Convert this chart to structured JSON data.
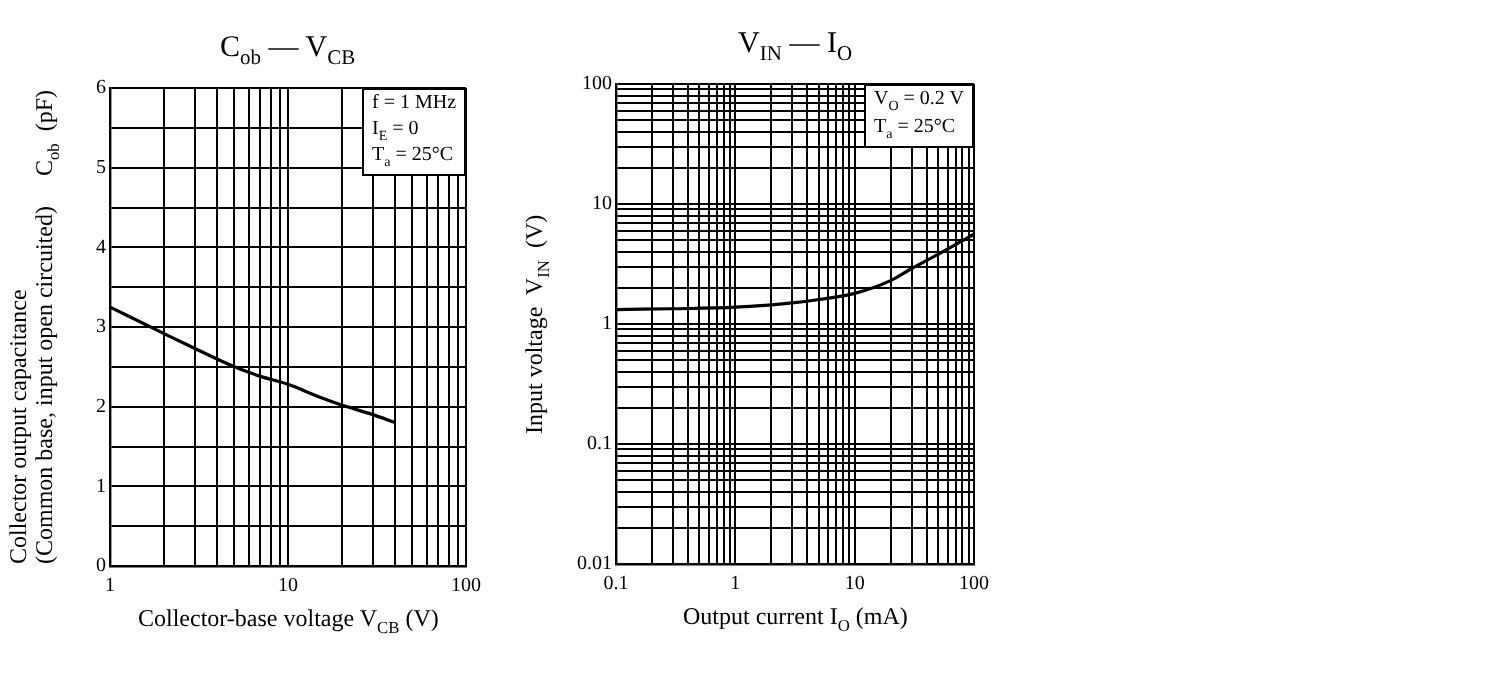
{
  "chart_data": [
    {
      "type": "line",
      "title": "C$_{ob}$ — V$_{CB}$",
      "xlabel": "Collector-base voltage  V$_{CB}$  (V)",
      "ylabel": "Collector output capacitance\n(Common base, input open circuited)     C$_{ob}$  (pF)",
      "annotations": [
        "f = 1 MHz",
        "I$_{E}$ = 0",
        "T$_{a}$ = 25°C"
      ],
      "log": "x",
      "grid": true,
      "legend": false,
      "marker": "none",
      "line_style": "solid",
      "xlim": [
        1,
        100
      ],
      "ylim": [
        0,
        6
      ],
      "xticks": [
        1,
        {
          "value": 2,
          "label": null
        },
        {
          "value": 3,
          "label": null
        },
        {
          "value": 4,
          "label": null
        },
        {
          "value": 5,
          "label": null
        },
        {
          "value": 6,
          "label": null
        },
        {
          "value": 7,
          "label": null
        },
        {
          "value": 8,
          "label": null
        },
        {
          "value": 9,
          "label": null
        },
        10,
        {
          "value": 20,
          "label": null
        },
        {
          "value": 30,
          "label": null
        },
        {
          "value": 40,
          "label": null
        },
        {
          "value": 50,
          "label": null
        },
        {
          "value": 60,
          "label": null
        },
        {
          "value": 70,
          "label": null
        },
        {
          "value": 80,
          "label": null
        },
        {
          "value": 90,
          "label": null
        },
        100
      ],
      "yticks": [
        0,
        {
          "value": 0.5,
          "label": null
        },
        1,
        {
          "value": 1.5,
          "label": null
        },
        2,
        {
          "value": 2.5,
          "label": null
        },
        3,
        {
          "value": 3.5,
          "label": null
        },
        4,
        {
          "value": 4.5,
          "label": null
        },
        5,
        {
          "value": 5.5,
          "label": null
        },
        6
      ],
      "series": [
        {
          "color": "#000000",
          "x": [
            1,
            2,
            3,
            5,
            7,
            10,
            15,
            20,
            30,
            40
          ],
          "values": [
            3.25,
            2.92,
            2.73,
            2.5,
            2.38,
            2.28,
            2.12,
            2.02,
            1.9,
            1.8
          ]
        }
      ]
    },
    {
      "type": "line",
      "title": "V$_{IN}$ — I$_{O}$",
      "xlabel": "Output current  I$_{O}$  (mA)",
      "ylabel": "Input voltage  V$_{IN}$  (V)",
      "annotations": [
        "V$_{O}$ = 0.2 V",
        "T$_{a}$ = 25°C"
      ],
      "log": "xy",
      "grid": true,
      "legend": false,
      "marker": "none",
      "line_style": "solid",
      "xlim": [
        0.1,
        100
      ],
      "ylim": [
        0.01,
        100
      ],
      "xticks": [
        0.1,
        {
          "value": 0.2,
          "label": null
        },
        {
          "value": 0.3,
          "label": null
        },
        {
          "value": 0.4,
          "label": null
        },
        {
          "value": 0.5,
          "label": null
        },
        {
          "value": 0.6,
          "label": null
        },
        {
          "value": 0.7,
          "label": null
        },
        {
          "value": 0.8,
          "label": null
        },
        {
          "value": 0.9,
          "label": null
        },
        1,
        {
          "value": 2,
          "label": null
        },
        {
          "value": 3,
          "label": null
        },
        {
          "value": 4,
          "label": null
        },
        {
          "value": 5,
          "label": null
        },
        {
          "value": 6,
          "label": null
        },
        {
          "value": 7,
          "label": null
        },
        {
          "value": 8,
          "label": null
        },
        {
          "value": 9,
          "label": null
        },
        10,
        {
          "value": 20,
          "label": null
        },
        {
          "value": 30,
          "label": null
        },
        {
          "value": 40,
          "label": null
        },
        {
          "value": 50,
          "label": null
        },
        {
          "value": 60,
          "label": null
        },
        {
          "value": 70,
          "label": null
        },
        {
          "value": 80,
          "label": null
        },
        {
          "value": 90,
          "label": null
        },
        100
      ],
      "yticks": [
        0.01,
        {
          "value": 0.02,
          "label": null
        },
        {
          "value": 0.03,
          "label": null
        },
        {
          "value": 0.04,
          "label": null
        },
        {
          "value": 0.05,
          "label": null
        },
        {
          "value": 0.06,
          "label": null
        },
        {
          "value": 0.07,
          "label": null
        },
        {
          "value": 0.08,
          "label": null
        },
        {
          "value": 0.09,
          "label": null
        },
        0.1,
        {
          "value": 0.2,
          "label": null
        },
        {
          "value": 0.3,
          "label": null
        },
        {
          "value": 0.4,
          "label": null
        },
        {
          "value": 0.5,
          "label": null
        },
        {
          "value": 0.6,
          "label": null
        },
        {
          "value": 0.7,
          "label": null
        },
        {
          "value": 0.8,
          "label": null
        },
        {
          "value": 0.9,
          "label": null
        },
        1,
        {
          "value": 2,
          "label": null
        },
        {
          "value": 3,
          "label": null
        },
        {
          "value": 4,
          "label": null
        },
        {
          "value": 5,
          "label": null
        },
        {
          "value": 6,
          "label": null
        },
        {
          "value": 7,
          "label": null
        },
        {
          "value": 8,
          "label": null
        },
        {
          "value": 9,
          "label": null
        },
        10,
        {
          "value": 20,
          "label": null
        },
        {
          "value": 30,
          "label": null
        },
        {
          "value": 40,
          "label": null
        },
        {
          "value": 50,
          "label": null
        },
        {
          "value": 60,
          "label": null
        },
        {
          "value": 70,
          "label": null
        },
        {
          "value": 80,
          "label": null
        },
        {
          "value": 90,
          "label": null
        },
        100
      ],
      "series": [
        {
          "color": "#000000",
          "x": [
            0.1,
            0.3,
            1,
            3,
            5,
            10,
            20,
            30,
            50,
            100
          ],
          "values": [
            1.32,
            1.34,
            1.38,
            1.5,
            1.6,
            1.8,
            2.3,
            2.9,
            3.8,
            5.6
          ]
        }
      ]
    }
  ]
}
